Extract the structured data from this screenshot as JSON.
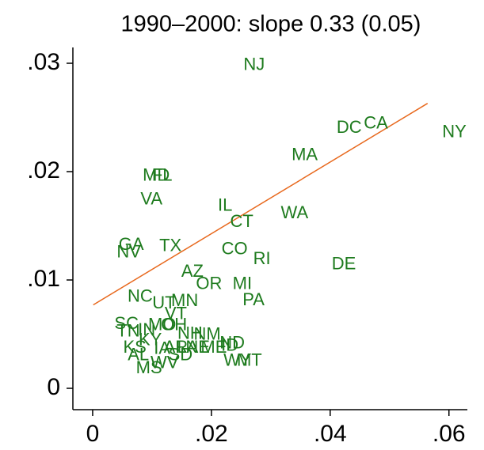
{
  "chart_data": {
    "type": "scatter",
    "title": "1990–2000: slope 0.33 (0.05)",
    "labels": [
      "NJ",
      "NY",
      "CA",
      "DC",
      "MA",
      "MD",
      "FL",
      "VA",
      "IL",
      "CT",
      "WA",
      "GA",
      "NV",
      "TX",
      "CO",
      "RI",
      "DE",
      "AZ",
      "OR",
      "MI",
      "PA",
      "NC",
      "UT",
      "MN",
      "VT",
      "SC",
      "TN",
      "IN",
      "MO",
      "OH",
      "NH",
      "NM",
      "KS",
      "KY",
      "AL",
      "IA",
      "AR",
      "SD",
      "MS",
      "WV",
      "LA",
      "NE",
      "ME",
      "ID",
      "ND",
      "WY",
      "MT"
    ],
    "x": [
      0.0272,
      0.0609,
      0.0477,
      0.0432,
      0.0357,
      0.0107,
      0.0117,
      0.0099,
      0.0223,
      0.0251,
      0.034,
      0.0065,
      0.0061,
      0.0131,
      0.0239,
      0.0285,
      0.0423,
      0.0168,
      0.0196,
      0.0252,
      0.0271,
      0.008,
      0.012,
      0.0155,
      0.014,
      0.0057,
      0.006,
      0.0091,
      0.0117,
      0.0137,
      0.0164,
      0.0193,
      0.0071,
      0.0097,
      0.0077,
      0.0117,
      0.014,
      0.0148,
      0.0095,
      0.0121,
      0.016,
      0.0177,
      0.0204,
      0.0231,
      0.0235,
      0.0244,
      0.0264
    ],
    "y": [
      0.0298,
      0.0236,
      0.0244,
      0.024,
      0.0215,
      0.0196,
      0.0196,
      0.0174,
      0.0168,
      0.0153,
      0.0161,
      0.0132,
      0.0125,
      0.0131,
      0.0128,
      0.0119,
      0.0114,
      0.0107,
      0.0096,
      0.0096,
      0.0081,
      0.0084,
      0.0078,
      0.008,
      0.0068,
      0.0059,
      0.0052,
      0.0053,
      0.0058,
      0.0058,
      0.005,
      0.0049,
      0.0037,
      0.0044,
      0.003,
      0.0036,
      0.0037,
      0.003,
      0.0018,
      0.0023,
      0.0037,
      0.0037,
      0.0037,
      0.0039,
      0.0041,
      0.0025,
      0.0025
    ],
    "color": "#1e7b1e",
    "fit": {
      "x": [
        0.0001,
        0.0564
      ],
      "y": [
        0.0077,
        0.0263
      ],
      "color": "#e8691e"
    },
    "xlim": [
      -0.00333,
      0.0631
    ],
    "ylim": [
      -0.00197,
      0.03146
    ],
    "xticks": [
      0,
      {
        "value": 0.02,
        "label": ".02"
      },
      {
        "value": 0.04,
        "label": ".04"
      },
      {
        "value": 0.06,
        "label": ".06"
      }
    ],
    "yticks": [
      0,
      {
        "value": 0.01,
        "label": ".01"
      },
      {
        "value": 0.02,
        "label": ".02"
      },
      {
        "value": 0.03,
        "label": ".03"
      }
    ]
  }
}
